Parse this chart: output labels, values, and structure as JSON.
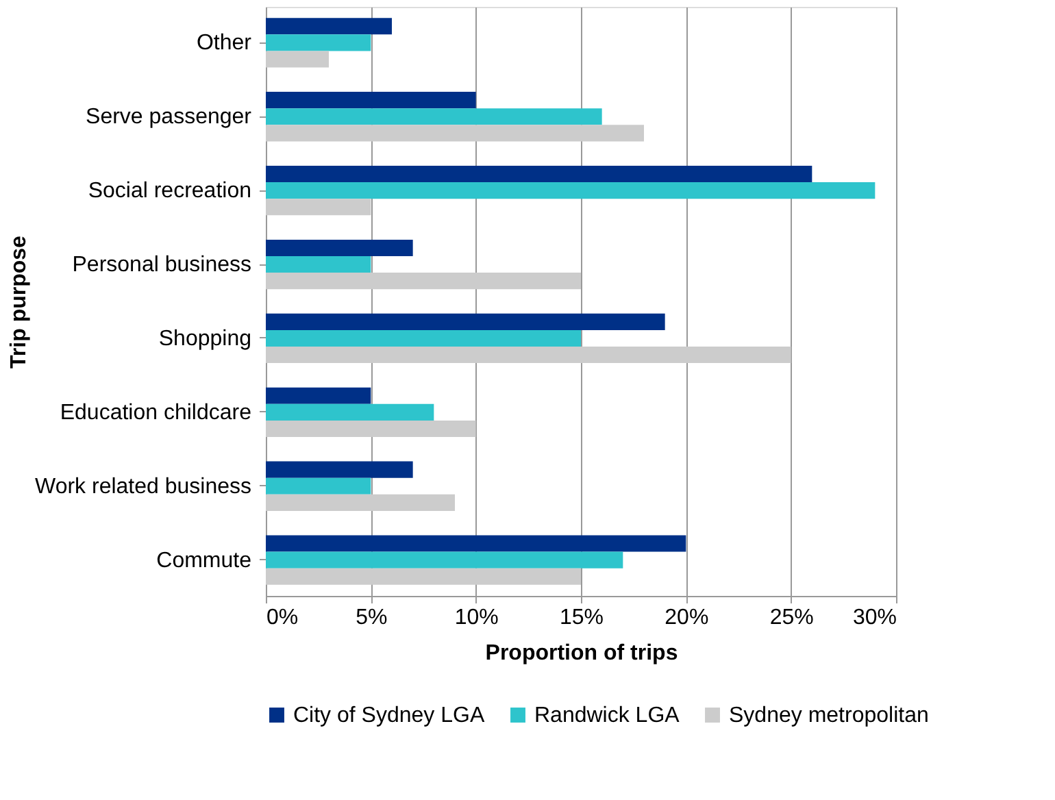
{
  "chart_data": {
    "type": "bar",
    "orientation": "horizontal",
    "xlabel": "Proportion of trips",
    "ylabel": "Trip purpose",
    "categories": [
      "Other",
      "Serve passenger",
      "Social recreation",
      "Personal business",
      "Shopping",
      "Education childcare",
      "Work related business",
      "Commute"
    ],
    "series": [
      {
        "name": "City of Sydney LGA",
        "color": "#003087",
        "values": [
          6,
          10,
          26,
          7,
          19,
          5,
          7,
          20
        ]
      },
      {
        "name": "Randwick LGA",
        "color": "#2ec4cc",
        "values": [
          5,
          16,
          29,
          5,
          15,
          8,
          5,
          17
        ]
      },
      {
        "name": "Sydney metropolitan",
        "color": "#cccccc",
        "values": [
          3,
          18,
          5,
          15,
          25,
          10,
          9,
          15
        ]
      }
    ],
    "xlim": [
      0,
      30
    ],
    "xticks": [
      {
        "value": 0,
        "label": "0%"
      },
      {
        "value": 5,
        "label": "5%"
      },
      {
        "value": 10,
        "label": "10%"
      },
      {
        "value": 15,
        "label": "15%"
      },
      {
        "value": 20,
        "label": "20%"
      },
      {
        "value": 25,
        "label": "25%"
      },
      {
        "value": 30,
        "label": "30%"
      }
    ],
    "grid": "x",
    "legend": "bottom"
  }
}
